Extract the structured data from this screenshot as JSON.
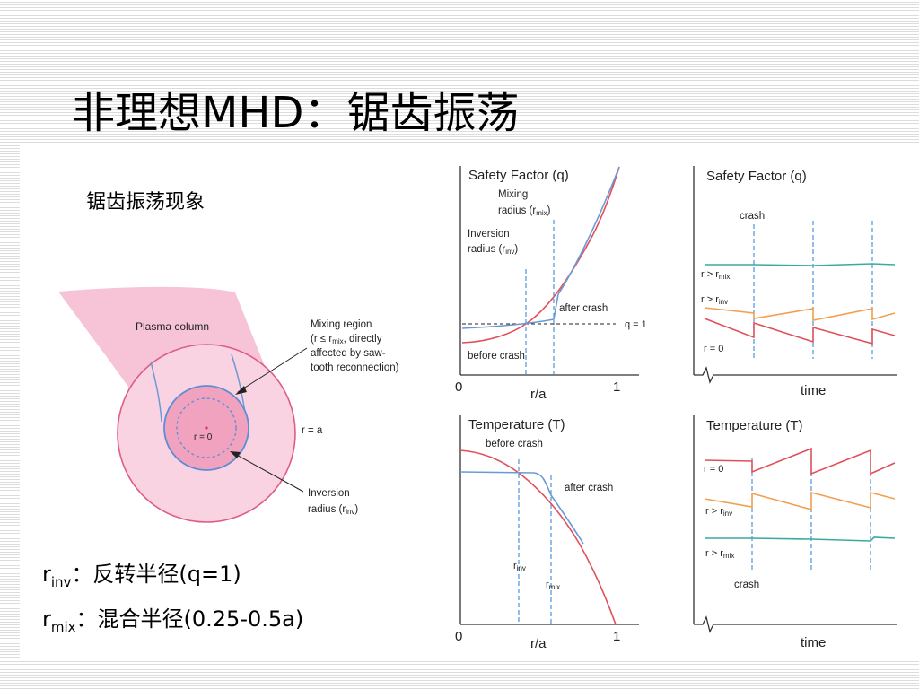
{
  "title": "非理想MHD：锯齿振荡",
  "subtitle": "锯齿振荡现象",
  "notes": {
    "rinv": {
      "symbol": "r",
      "sub": "inv",
      "text": "：反转半径(q=1)"
    },
    "rmix": {
      "symbol": "r",
      "sub": "mix",
      "text": "：混合半径(0.25-0.5a)"
    }
  },
  "torus_labels": {
    "plasma_column": "Plasma column",
    "mixing_region": [
      "Mixing region",
      "(r ≤ r",
      "mix",
      ", directly",
      "affected by saw-",
      "tooth reconnection)"
    ],
    "r_eq_a": "r = a",
    "r_eq_0": "r = 0",
    "inversion": [
      "Inversion",
      "radius (r",
      "inv",
      ")"
    ]
  },
  "q_profile": {
    "title": "Safety Factor (q)",
    "mixing": [
      "Mixing",
      "radius (r",
      "mix",
      ")"
    ],
    "inversion": [
      "Inversion",
      "radius (r",
      "inv",
      ")"
    ],
    "after": "after crash",
    "before": "before crash",
    "q1": "q = 1",
    "x0": "0",
    "x1": "1",
    "xlabel": "r/a"
  },
  "q_time": {
    "title": "Safety Factor (q)",
    "crash": "crash",
    "r_mix": [
      "r > r",
      "mix"
    ],
    "r_inv": [
      "r > r",
      "inv"
    ],
    "r0": "r = 0",
    "xlabel": "time"
  },
  "t_profile": {
    "title": "Temperature (T)",
    "before": "before crash",
    "after": "after crash",
    "rinv": [
      "r",
      "inv"
    ],
    "rmix": [
      "r",
      "mix"
    ],
    "x0": "0",
    "x1": "1",
    "xlabel": "r/a"
  },
  "t_time": {
    "title": "Temperature (T)",
    "r0": "r = 0",
    "r_inv": [
      "r > r",
      "inv"
    ],
    "r_mix": [
      "r > r",
      "mix"
    ],
    "crash": "crash",
    "xlabel": "time"
  },
  "colors": {
    "red": "#e0505a",
    "blue": "#6a9ad6",
    "orange": "#f0a050",
    "teal": "#3aaaa0",
    "pink": "#f6c4d6"
  }
}
